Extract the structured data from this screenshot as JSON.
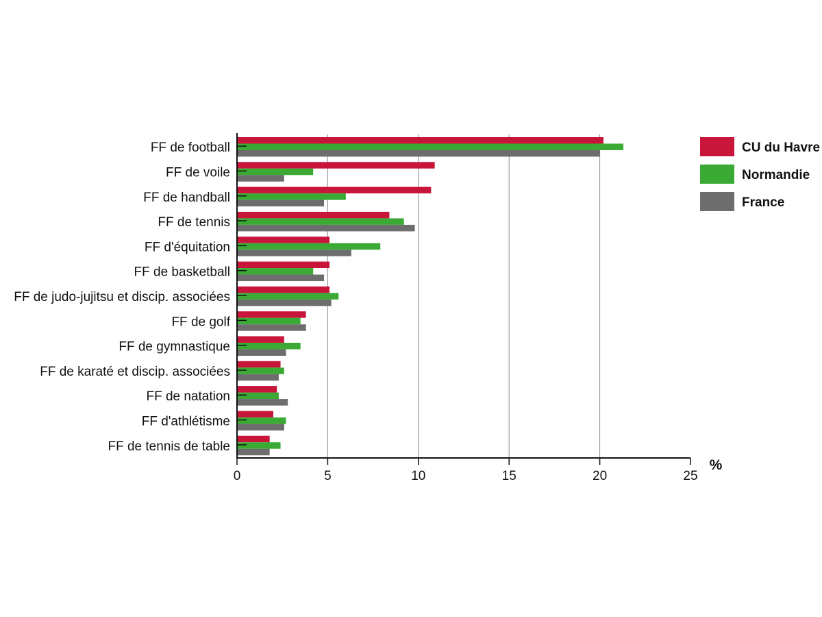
{
  "chart_data": {
    "type": "bar",
    "orientation": "horizontal",
    "categories": [
      "FF de football",
      "FF de voile",
      "FF de handball",
      "FF de tennis",
      "FF d'équitation",
      "FF de basketball",
      "FF de judo-jujitsu et discip. associées",
      "FF de golf",
      "FF de gymnastique",
      "FF de karaté et discip. associées",
      "FF de natation",
      "FF d'athlétisme",
      "FF de tennis de table"
    ],
    "series": [
      {
        "name": "CU du Havre",
        "color": "#c8163b",
        "values": [
          20.2,
          10.9,
          10.7,
          8.4,
          5.1,
          5.1,
          5.1,
          3.8,
          2.6,
          2.4,
          2.2,
          2.0,
          1.8
        ]
      },
      {
        "name": "Normandie",
        "color": "#3aaa35",
        "values": [
          21.3,
          4.2,
          6.0,
          9.2,
          7.9,
          4.2,
          5.6,
          3.5,
          3.5,
          2.6,
          2.3,
          2.7,
          2.4
        ]
      },
      {
        "name": "France",
        "color": "#6d6d6d",
        "values": [
          20.0,
          2.6,
          4.8,
          9.8,
          6.3,
          4.8,
          5.2,
          3.8,
          2.7,
          2.3,
          2.8,
          2.6,
          1.8
        ]
      }
    ],
    "xlim": [
      0,
      25
    ],
    "xticks": [
      0,
      5,
      10,
      15,
      20,
      25
    ],
    "xunit": "%",
    "grid": "vertical",
    "legend_position": "right"
  }
}
